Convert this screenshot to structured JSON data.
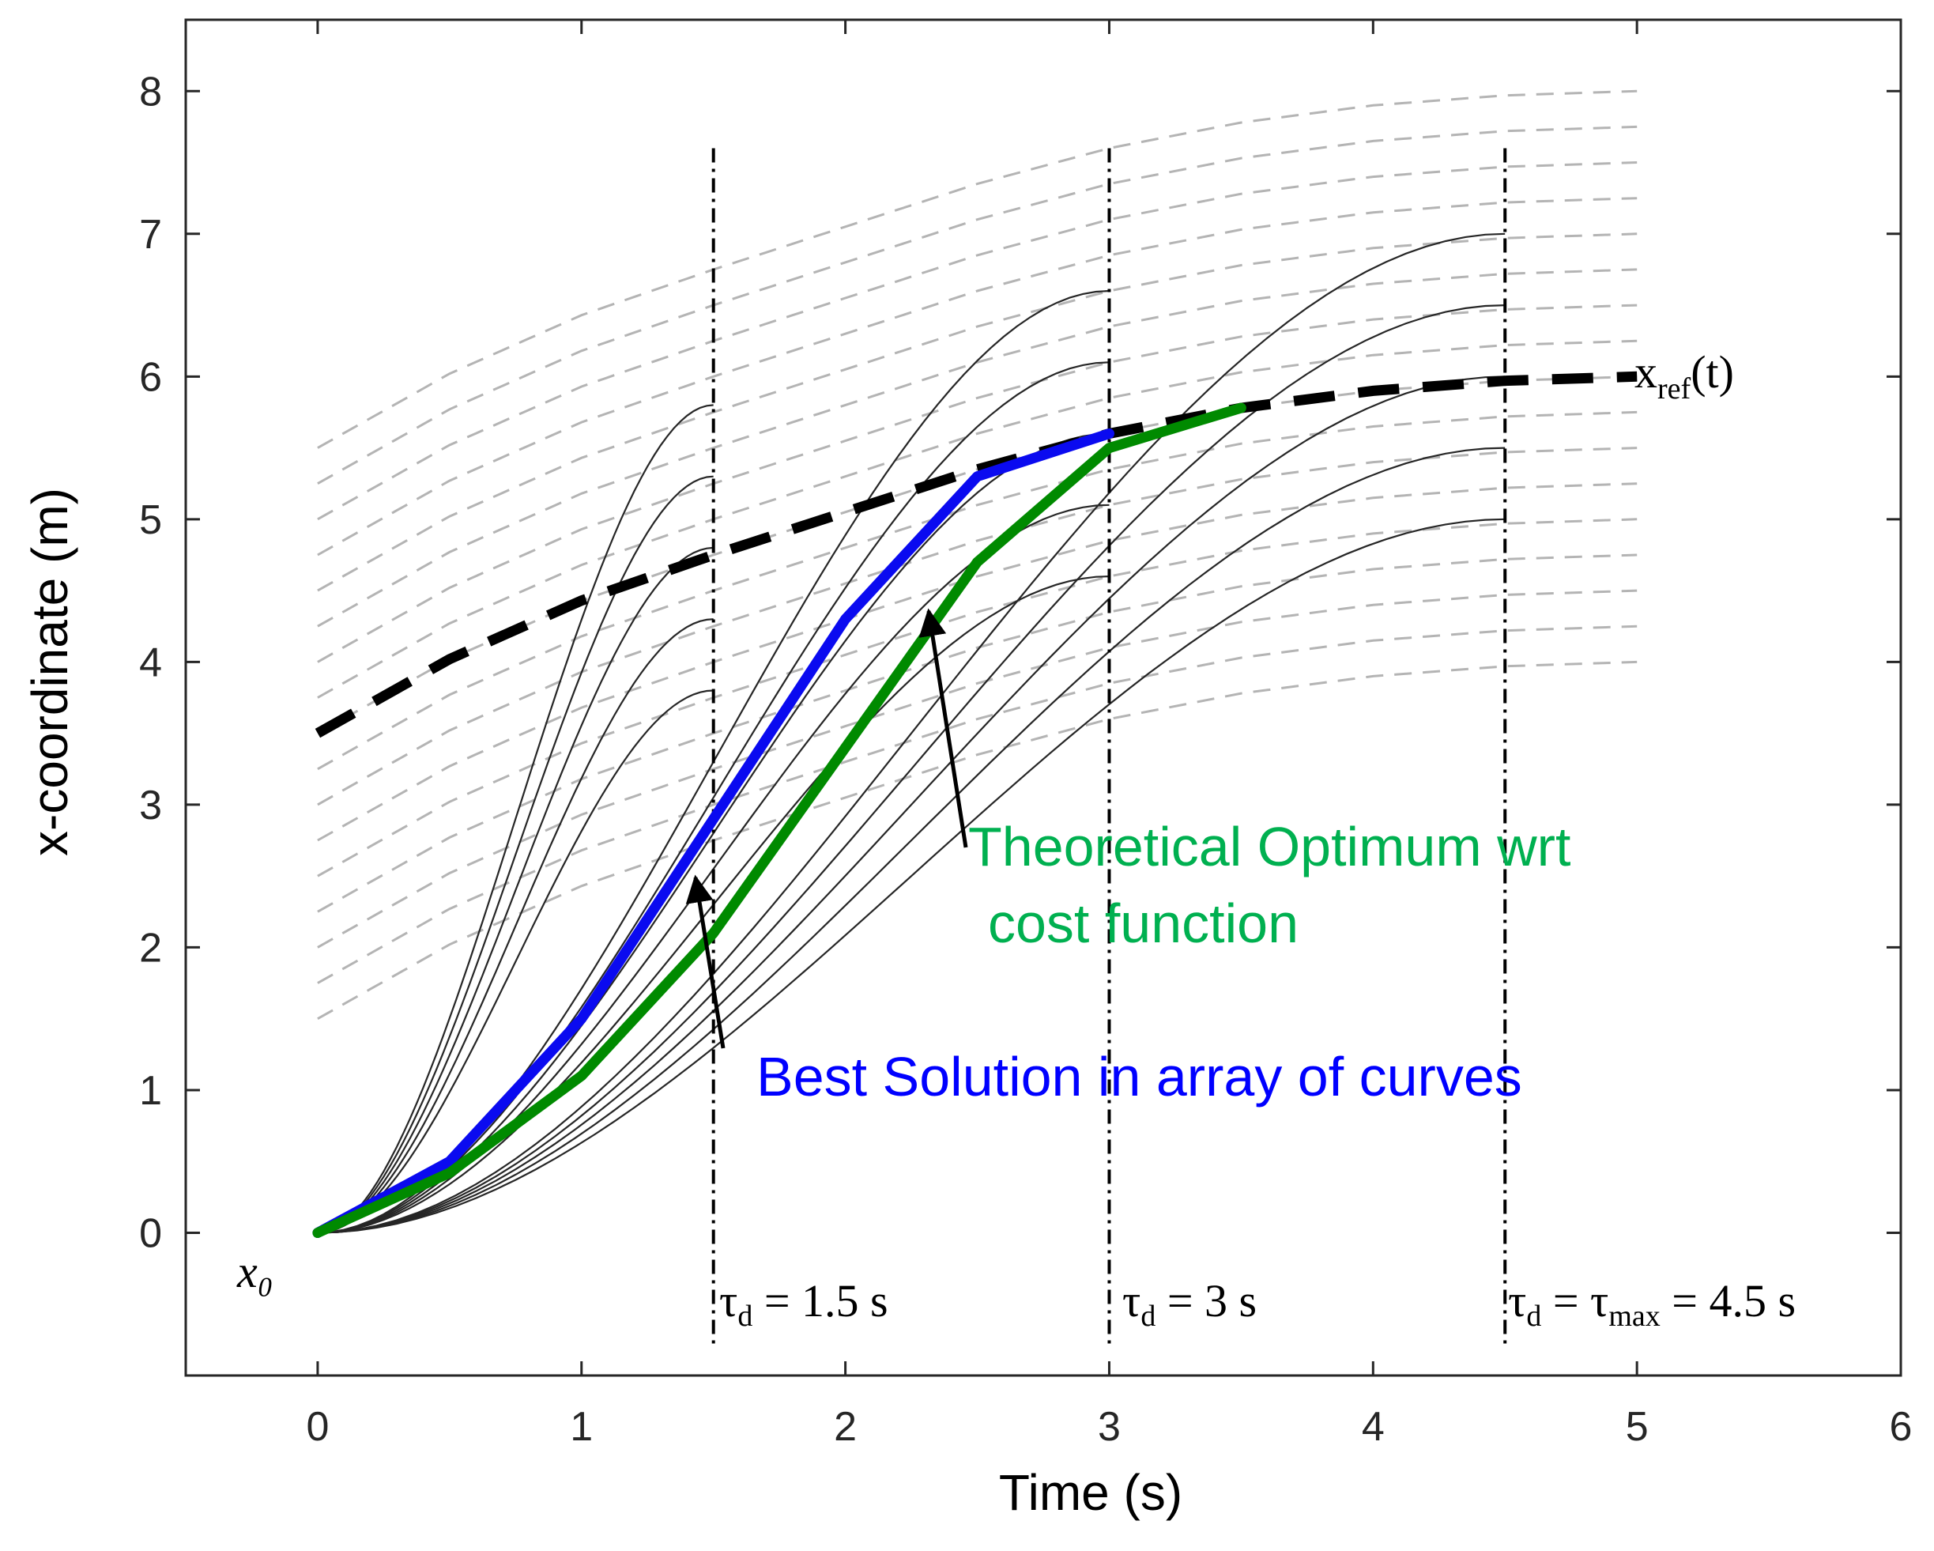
{
  "chart_data": {
    "type": "line",
    "xlabel": "Time (s)",
    "ylabel": "x-coordinate (m)",
    "xlim": [
      -0.5,
      6
    ],
    "ylim": [
      -1,
      8.5
    ],
    "xticks": [
      0,
      1,
      2,
      3,
      4,
      5,
      6
    ],
    "yticks": [
      0,
      1,
      2,
      3,
      4,
      5,
      6,
      7,
      8
    ],
    "grid": false,
    "colors": {
      "reference": "#000000",
      "candidates": "#262626",
      "shifted_refs": "#b4b4b4",
      "best": "#0a0af0",
      "optimum": "#008a00",
      "green_text": "#00b050",
      "blue_text": "#0000ff"
    },
    "reference_label": {
      "main": "x",
      "sub": "ref",
      "tail": "(t)"
    },
    "reference": {
      "name": "x_ref(t)",
      "x": [
        0,
        0.5,
        1,
        1.5,
        2,
        2.5,
        3,
        3.5,
        4,
        4.5,
        5
      ],
      "y": [
        3.5,
        4.02,
        4.43,
        4.75,
        5.05,
        5.35,
        5.6,
        5.78,
        5.9,
        5.97,
        6.0
      ]
    },
    "shifted_reference_offsets": [
      -2,
      -1.75,
      -1.5,
      -1.25,
      -1,
      -0.75,
      -0.5,
      -0.25,
      0,
      0.25,
      0.5,
      0.75,
      1,
      1.25,
      1.5,
      1.75,
      2
    ],
    "candidate_groups": [
      {
        "tau": 1.5,
        "finals": [
          3.8,
          4.3,
          4.8,
          5.3,
          5.8
        ]
      },
      {
        "tau": 3.0,
        "finals": [
          4.6,
          5.1,
          5.6,
          6.1,
          6.6
        ]
      },
      {
        "tau": 4.5,
        "finals": [
          5.0,
          5.5,
          6.0,
          6.5,
          7.0
        ]
      }
    ],
    "best_solution": {
      "name": "Best Solution in array of curves",
      "x": [
        0,
        0.5,
        1,
        1.5,
        2,
        2.5,
        3
      ],
      "y": [
        0,
        0.5,
        1.5,
        2.9,
        4.3,
        5.3,
        5.6
      ]
    },
    "theoretical_optimum": {
      "name": "Theoretical Optimum wrt cost function",
      "x": [
        0,
        0.5,
        1,
        1.5,
        2,
        2.5,
        3,
        3.5
      ],
      "y": [
        0,
        0.42,
        1.1,
        2.1,
        3.4,
        4.7,
        5.5,
        5.78
      ]
    },
    "vlines": [
      {
        "x": 1.5,
        "tau": "τ",
        "tau_sub": "d",
        "text": " = 1.5 s"
      },
      {
        "x": 3.0,
        "tau": "τ",
        "tau_sub": "d",
        "text": " = 3 s"
      },
      {
        "x": 4.5,
        "tau": "τ",
        "tau_sub": "d",
        "text": " = τ",
        "max_sub": "max",
        "tail": " = 4.5 s"
      }
    ],
    "annotations": {
      "optimum_line1": "Theoretical Optimum wrt",
      "optimum_line2": "cost function",
      "best": "Best Solution in array of curves",
      "x0": "x₀"
    }
  }
}
